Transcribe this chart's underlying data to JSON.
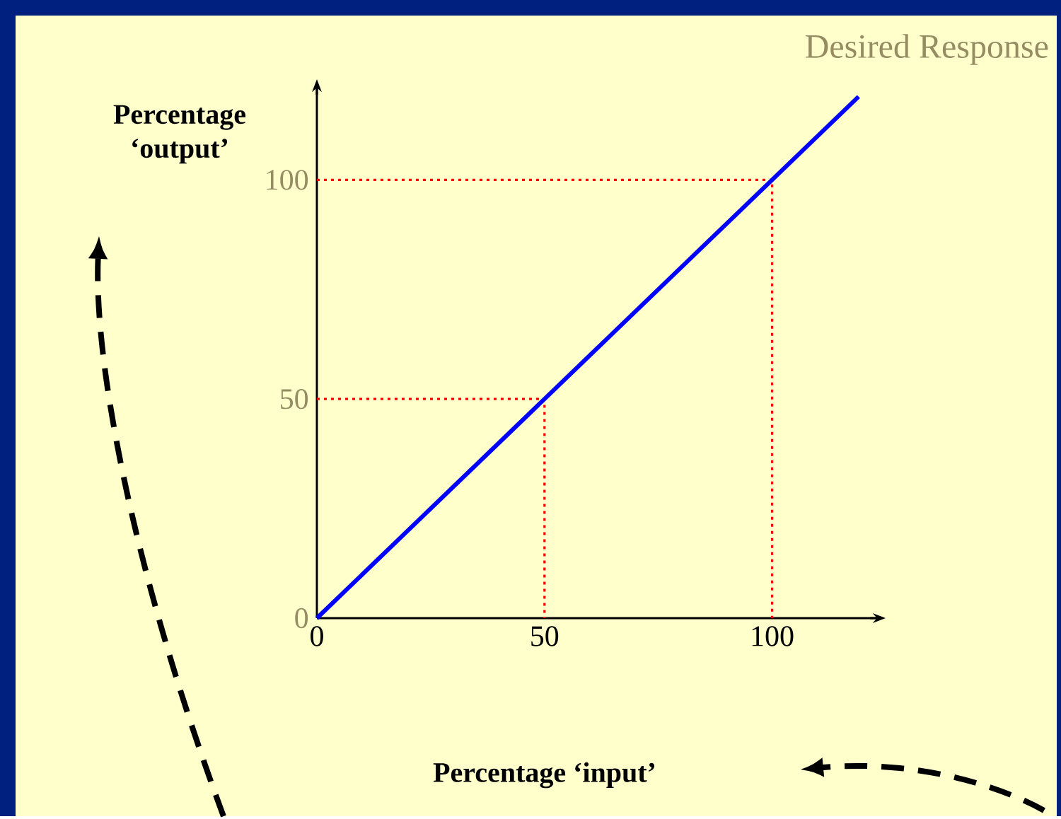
{
  "chart_data": {
    "type": "line",
    "title": "Desired Response",
    "xlabel": "Percentage ‘input’",
    "ylabel": "Percentage ‘output’",
    "series": [
      {
        "color": "#ff0000",
        "line_style": "dotted",
        "x": [
          0,
          50,
          50
        ],
        "values": [
          50,
          50,
          0
        ]
      },
      {
        "color": "#ff0000",
        "line_style": "dotted",
        "x": [
          0,
          100,
          100
        ],
        "values": [
          100,
          100,
          0
        ]
      },
      {
        "color": "#0000ff",
        "x": [
          0,
          119
        ],
        "values": [
          0,
          119
        ]
      }
    ],
    "xlim": [
      0,
      124
    ],
    "ylim": [
      0,
      122
    ],
    "xticks": [
      0,
      50,
      100
    ],
    "yticks": [
      0,
      50,
      100
    ],
    "grid": false,
    "marker": "none",
    "line_style": "solid"
  }
}
